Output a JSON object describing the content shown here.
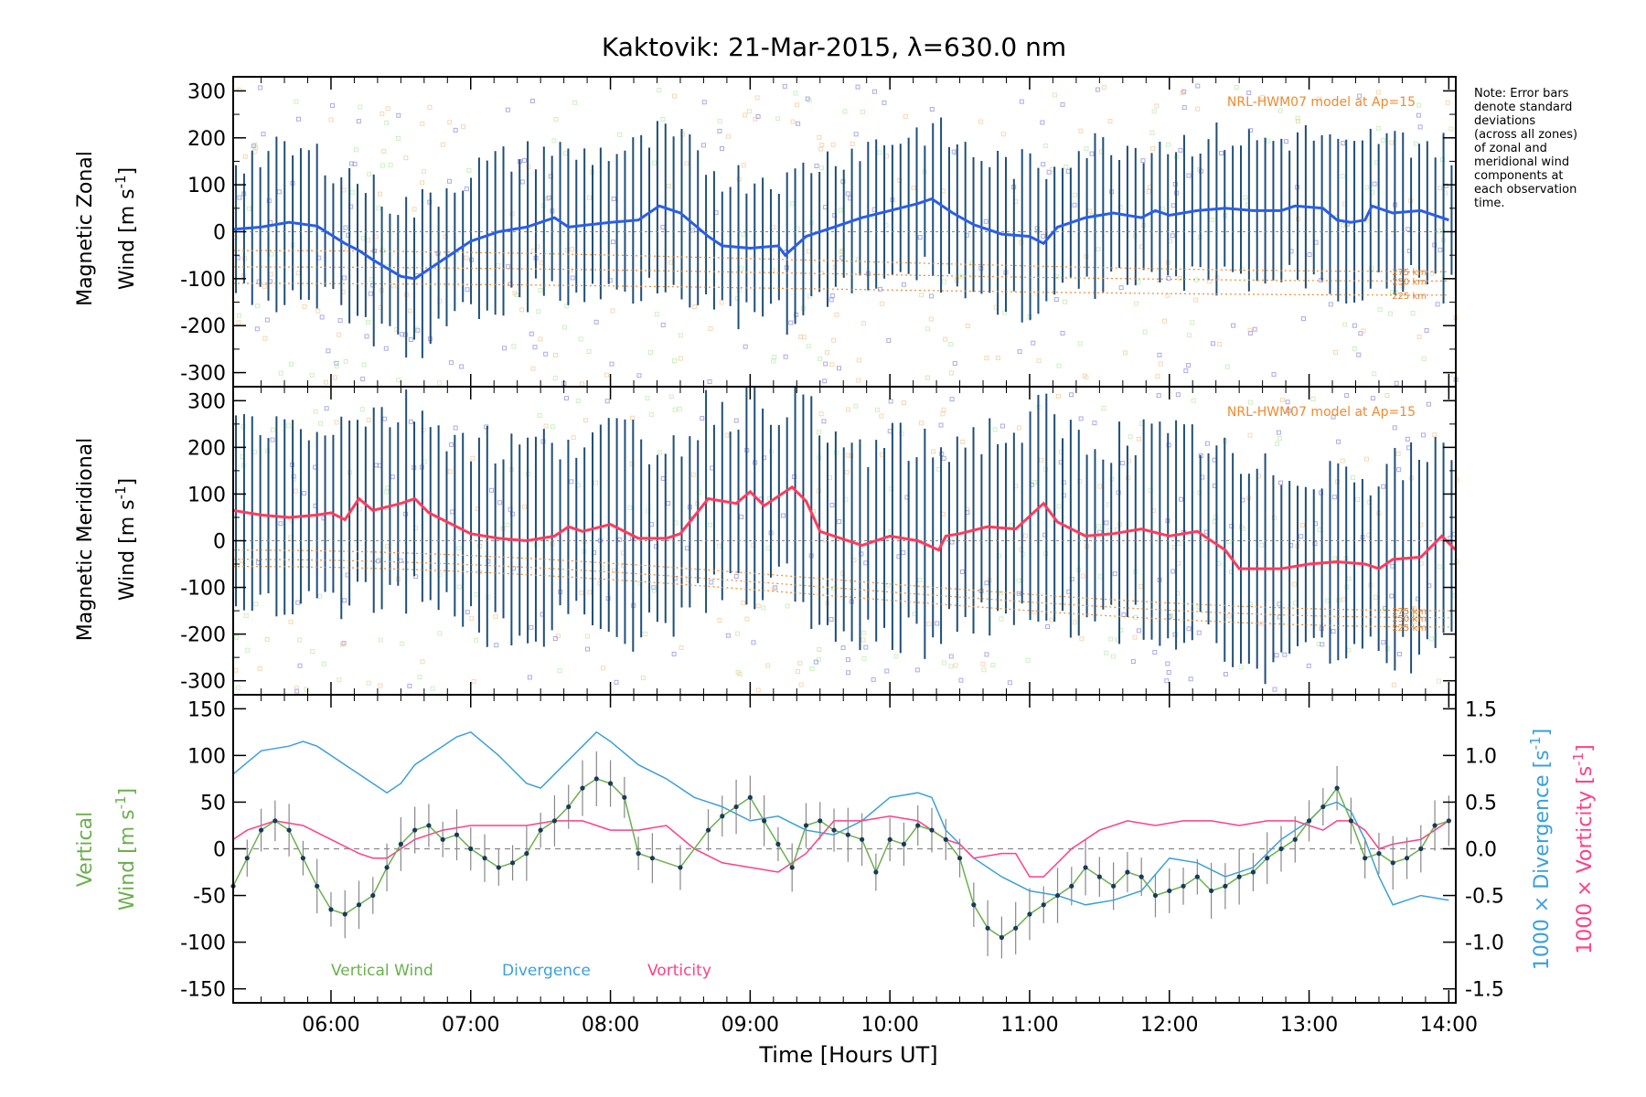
{
  "title": "Kaktovik: 21-Mar-2015, λ=630.0 nm",
  "note": [
    "Note: Error bars",
    "denote standard",
    "deviations",
    "(across all zones)",
    "of zonal and",
    "meridional wind",
    "components at",
    "each observation",
    "time."
  ],
  "colors": {
    "zonal": "#2a5ee8",
    "meridional": "#ff3b5c",
    "vertical": "#6ab04c",
    "divergence": "#3aa0dc",
    "vorticity": "#ff3f86",
    "errorbar": "#1f4f78",
    "model": "#f08a2c",
    "scatter_blue": "#8f8fe0",
    "scatter_orange": "#f6c99a",
    "scatter_green": "#b9ecab"
  },
  "chart_data": [
    {
      "type": "line",
      "panel": "zonal",
      "ylabel_line1": "Magnetic Zonal",
      "ylabel_line2": "Wind [m s",
      "ylabel_sup": "-1",
      "ylabel_end": "]",
      "ylim": [
        -330,
        330
      ],
      "yticks": [
        300,
        200,
        100,
        0,
        -100,
        -200,
        -300
      ],
      "model_label": "NRL-HWM07 model at Ap=15",
      "model_altitudes": [
        "275 km",
        "250 km",
        "225 km"
      ],
      "series": [
        {
          "x": [
            5.3,
            5.5,
            5.7,
            5.9,
            6.1,
            6.2,
            6.3,
            6.5,
            6.6,
            6.8,
            7.0,
            7.2,
            7.4,
            7.5,
            7.6,
            7.7,
            8.0,
            8.2,
            8.35,
            8.5,
            8.7,
            8.8,
            9.0,
            9.2,
            9.25,
            9.4,
            9.6,
            9.8,
            10.0,
            10.2,
            10.3,
            10.45,
            10.6,
            10.8,
            11.0,
            11.1,
            11.2,
            11.4,
            11.6,
            11.8,
            11.9,
            12.0,
            12.2,
            12.4,
            12.6,
            12.8,
            12.9,
            13.1,
            13.2,
            13.3,
            13.4,
            13.45,
            13.6,
            13.8,
            14.0
          ],
          "y": [
            5,
            10,
            20,
            12,
            -25,
            -40,
            -60,
            -95,
            -100,
            -60,
            -20,
            0,
            10,
            20,
            30,
            10,
            20,
            25,
            55,
            40,
            -10,
            -30,
            -35,
            -30,
            -50,
            -10,
            10,
            30,
            45,
            60,
            70,
            40,
            15,
            -5,
            -10,
            -25,
            10,
            30,
            40,
            30,
            45,
            35,
            45,
            50,
            45,
            45,
            55,
            50,
            25,
            20,
            25,
            55,
            40,
            45,
            25
          ]
        }
      ],
      "errorbar_halfwidth": 150,
      "model_curves": [
        {
          "name": "275 km",
          "y0": -40,
          "y1": -85
        },
        {
          "name": "250 km",
          "y0": -75,
          "y1": -105
        },
        {
          "name": "225 km",
          "y0": -110,
          "y1": -135
        }
      ]
    },
    {
      "type": "line",
      "panel": "meridional",
      "ylabel_line1": "Magnetic Meridional",
      "ylabel_line2": "Wind [m s",
      "ylabel_sup": "-1",
      "ylabel_end": "]",
      "ylim": [
        -330,
        330
      ],
      "yticks": [
        300,
        200,
        100,
        0,
        -100,
        -200,
        -300
      ],
      "model_label": "NRL-HWM07 model at Ap=15",
      "model_altitudes": [
        "275 km",
        "250 km",
        "225 km"
      ],
      "series": [
        {
          "x": [
            5.3,
            5.5,
            5.7,
            5.9,
            6.0,
            6.1,
            6.2,
            6.3,
            6.5,
            6.6,
            6.7,
            6.9,
            7.0,
            7.2,
            7.4,
            7.6,
            7.7,
            7.8,
            8.0,
            8.2,
            8.4,
            8.5,
            8.7,
            8.9,
            9.0,
            9.1,
            9.3,
            9.4,
            9.5,
            9.6,
            9.8,
            10.0,
            10.2,
            10.35,
            10.4,
            10.5,
            10.7,
            10.9,
            11.1,
            11.2,
            11.4,
            11.6,
            11.8,
            12.0,
            12.2,
            12.4,
            12.5,
            12.8,
            13.0,
            13.2,
            13.4,
            13.5,
            13.6,
            13.8,
            13.95,
            14.05
          ],
          "y": [
            65,
            55,
            50,
            55,
            60,
            45,
            90,
            65,
            80,
            90,
            60,
            30,
            15,
            5,
            0,
            10,
            30,
            20,
            35,
            5,
            5,
            15,
            90,
            80,
            105,
            75,
            115,
            85,
            20,
            10,
            -10,
            10,
            0,
            -20,
            10,
            15,
            30,
            25,
            80,
            40,
            10,
            15,
            25,
            10,
            20,
            -20,
            -60,
            -60,
            -50,
            -45,
            -50,
            -60,
            -40,
            -35,
            10,
            -20
          ]
        }
      ],
      "errorbar_halfwidth": 200,
      "model_curves": [
        {
          "name": "275 km",
          "y0": -20,
          "y1": -150
        },
        {
          "name": "250 km",
          "y0": -40,
          "y1": -165
        },
        {
          "name": "225 km",
          "y0": -55,
          "y1": -185
        }
      ]
    },
    {
      "type": "line",
      "panel": "vertical",
      "ylabel_left_line1": "Vertical",
      "ylabel_left_line2": "Wind [m s",
      "ylabel_sup": "-1",
      "ylabel_end": "]",
      "ylabel_right1": "1000 × Divergence [s",
      "ylabel_right2": "1000 × Vorticity [s",
      "ylim": [
        -165,
        165
      ],
      "yticks": [
        150,
        100,
        50,
        0,
        -50,
        -100,
        -150
      ],
      "y2lim": [
        -1.65,
        1.65
      ],
      "y2ticks": [
        "1.5",
        "1.0",
        "0.5",
        "0.0",
        "-0.5",
        "-1.0",
        "-1.5"
      ],
      "xlim": [
        5.3,
        14.05
      ],
      "xticks": [
        "06:00",
        "07:00",
        "08:00",
        "09:00",
        "10:00",
        "11:00",
        "12:00",
        "13:00",
        "14:00"
      ],
      "xtick_values": [
        6,
        7,
        8,
        9,
        10,
        11,
        12,
        13,
        14
      ],
      "xlabel": "Time [Hours UT]",
      "legend": [
        "Vertical Wind",
        "Divergence",
        "Vorticity"
      ],
      "series": [
        {
          "name": "Vertical Wind",
          "x": [
            5.3,
            5.4,
            5.5,
            5.6,
            5.7,
            5.8,
            5.9,
            6.0,
            6.1,
            6.2,
            6.3,
            6.4,
            6.5,
            6.6,
            6.7,
            6.8,
            6.9,
            7.0,
            7.1,
            7.2,
            7.3,
            7.4,
            7.5,
            7.6,
            7.7,
            7.8,
            7.9,
            8.0,
            8.1,
            8.2,
            8.3,
            8.5,
            8.7,
            8.8,
            8.9,
            9.0,
            9.1,
            9.2,
            9.3,
            9.4,
            9.5,
            9.6,
            9.7,
            9.8,
            9.9,
            10.0,
            10.1,
            10.2,
            10.3,
            10.4,
            10.5,
            10.6,
            10.7,
            10.8,
            10.9,
            11.0,
            11.1,
            11.2,
            11.3,
            11.4,
            11.5,
            11.6,
            11.7,
            11.8,
            11.9,
            12.0,
            12.1,
            12.2,
            12.3,
            12.4,
            12.5,
            12.6,
            12.7,
            12.8,
            12.9,
            13.0,
            13.1,
            13.2,
            13.3,
            13.4,
            13.5,
            13.6,
            13.7,
            13.8,
            13.9,
            14.0
          ],
          "y": [
            -40,
            -10,
            20,
            30,
            20,
            -10,
            -40,
            -65,
            -70,
            -60,
            -50,
            -20,
            5,
            20,
            25,
            10,
            15,
            0,
            -10,
            -20,
            -15,
            -5,
            20,
            30,
            45,
            65,
            75,
            70,
            55,
            -5,
            -10,
            -20,
            20,
            35,
            45,
            55,
            30,
            5,
            -20,
            25,
            30,
            20,
            15,
            10,
            -25,
            10,
            5,
            25,
            20,
            10,
            -10,
            -60,
            -85,
            -95,
            -85,
            -70,
            -60,
            -50,
            -40,
            -20,
            -30,
            -40,
            -25,
            -30,
            -50,
            -45,
            -40,
            -30,
            -45,
            -40,
            -30,
            -25,
            -10,
            0,
            10,
            30,
            45,
            65,
            30,
            -10,
            -5,
            -15,
            -10,
            0,
            25,
            30
          ]
        },
        {
          "name": "Divergence",
          "axis": "y2",
          "x": [
            5.3,
            5.5,
            5.7,
            5.8,
            5.9,
            6.0,
            6.1,
            6.2,
            6.3,
            6.4,
            6.5,
            6.6,
            6.7,
            6.8,
            6.9,
            7.0,
            7.2,
            7.4,
            7.5,
            7.6,
            7.8,
            7.9,
            8.0,
            8.2,
            8.4,
            8.6,
            8.8,
            9.0,
            9.2,
            9.4,
            9.6,
            9.8,
            10.0,
            10.2,
            10.3,
            10.4,
            10.6,
            10.8,
            11.0,
            11.2,
            11.4,
            11.6,
            11.8,
            12.0,
            12.2,
            12.4,
            12.6,
            12.8,
            13.0,
            13.1,
            13.2,
            13.3,
            13.4,
            13.5,
            13.6,
            13.8,
            14.0
          ],
          "y": [
            0.8,
            1.05,
            1.1,
            1.15,
            1.1,
            1.0,
            0.9,
            0.8,
            0.7,
            0.6,
            0.7,
            0.9,
            1.0,
            1.1,
            1.2,
            1.25,
            1.0,
            0.7,
            0.65,
            0.8,
            1.1,
            1.25,
            1.15,
            0.9,
            0.75,
            0.55,
            0.45,
            0.3,
            0.35,
            0.2,
            0.15,
            0.3,
            0.55,
            0.6,
            0.55,
            0.2,
            -0.1,
            -0.3,
            -0.45,
            -0.5,
            -0.6,
            -0.55,
            -0.45,
            -0.1,
            -0.15,
            -0.3,
            -0.2,
            0.1,
            0.3,
            0.45,
            0.5,
            0.4,
            0.1,
            -0.3,
            -0.6,
            -0.5,
            -0.55
          ]
        },
        {
          "name": "Vorticity",
          "axis": "y2",
          "x": [
            5.3,
            5.4,
            5.6,
            5.8,
            6.0,
            6.2,
            6.3,
            6.4,
            6.6,
            6.8,
            7.0,
            7.2,
            7.4,
            7.6,
            7.8,
            8.0,
            8.2,
            8.4,
            8.6,
            8.8,
            9.0,
            9.2,
            9.4,
            9.6,
            9.8,
            10.0,
            10.2,
            10.4,
            10.5,
            10.6,
            10.8,
            10.9,
            11.0,
            11.1,
            11.3,
            11.5,
            11.7,
            11.9,
            12.1,
            12.3,
            12.5,
            12.7,
            12.9,
            13.1,
            13.2,
            13.3,
            13.4,
            13.5,
            13.6,
            13.8,
            14.0
          ],
          "y": [
            0.1,
            0.2,
            0.3,
            0.25,
            0.1,
            -0.05,
            -0.1,
            -0.1,
            0.1,
            0.2,
            0.25,
            0.25,
            0.25,
            0.3,
            0.3,
            0.2,
            0.2,
            0.25,
            0.0,
            -0.15,
            -0.2,
            -0.25,
            -0.05,
            0.3,
            0.3,
            0.35,
            0.3,
            0.1,
            0.05,
            -0.1,
            -0.05,
            -0.05,
            -0.3,
            -0.3,
            0.0,
            0.2,
            0.3,
            0.25,
            0.3,
            0.3,
            0.25,
            0.3,
            0.3,
            0.2,
            0.3,
            0.3,
            0.2,
            0.0,
            0.05,
            0.1,
            0.3
          ]
        }
      ]
    }
  ]
}
